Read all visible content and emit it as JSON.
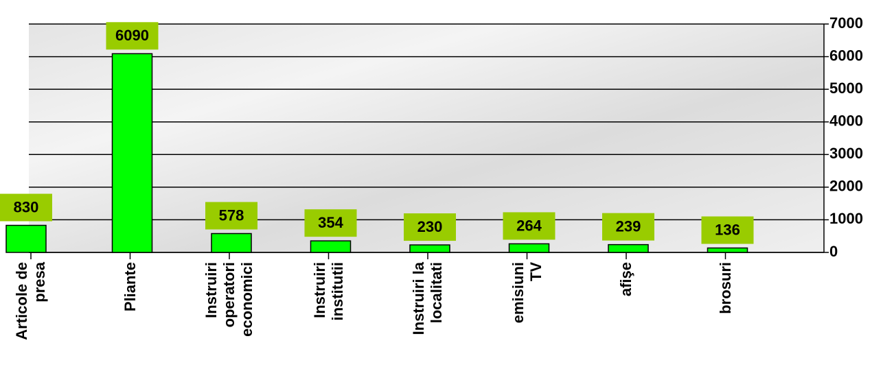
{
  "chart_data": {
    "type": "bar",
    "categories": [
      "Articole de\npresa",
      "Pliante",
      "Instruiri\noperatori\neconomici",
      "Instruiri\ninstitutii",
      "Instruiri la\nlocalitati",
      "emisiuni\nTV",
      "afişe",
      "brosuri"
    ],
    "values": [
      830,
      6090,
      578,
      354,
      230,
      264,
      239,
      136
    ],
    "color": "#00ff00",
    "label_color": "#99cc00",
    "ylim": [
      0,
      7000
    ],
    "yticks": [
      0,
      1000,
      2000,
      3000,
      4000,
      5000,
      6000,
      7000
    ],
    "grid": true
  }
}
